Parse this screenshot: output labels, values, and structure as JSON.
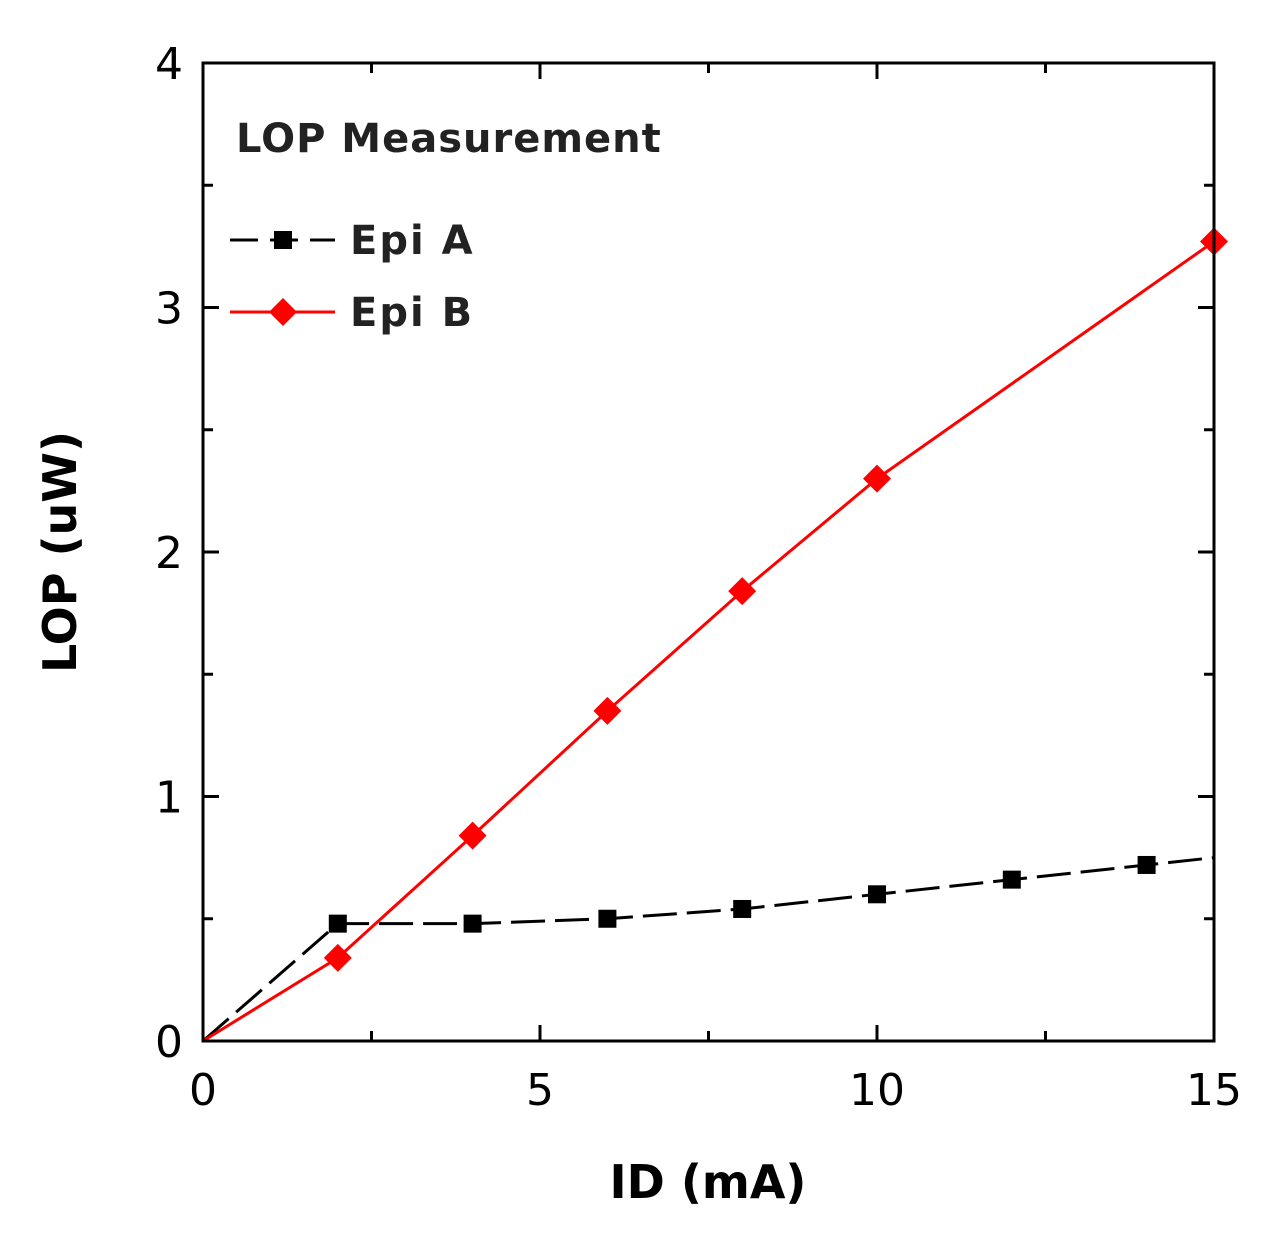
{
  "chart_data": {
    "type": "line",
    "title": "",
    "annotation": "LOP Measurement",
    "xlabel": "ID (mA)",
    "ylabel": "LOP (uW)",
    "xlim": [
      0,
      15
    ],
    "ylim": [
      0,
      4
    ],
    "xticks": [
      0,
      5,
      10,
      15
    ],
    "yticks": [
      0,
      1,
      2,
      3,
      4
    ],
    "grid": false,
    "legend_position": "top-left",
    "series": [
      {
        "name": "Epi A",
        "color": "#000000",
        "marker": "square",
        "x": [
          0,
          2,
          4,
          6,
          8,
          10,
          12,
          14,
          15
        ],
        "y": [
          0,
          0.48,
          0.48,
          0.5,
          0.54,
          0.6,
          0.66,
          0.72,
          0.75
        ]
      },
      {
        "name": "Epi B",
        "color": "#ff0000",
        "marker": "diamond",
        "x": [
          0,
          2,
          4,
          6,
          8,
          10,
          15
        ],
        "y": [
          0,
          0.34,
          0.84,
          1.35,
          1.84,
          2.3,
          3.27
        ]
      }
    ]
  }
}
